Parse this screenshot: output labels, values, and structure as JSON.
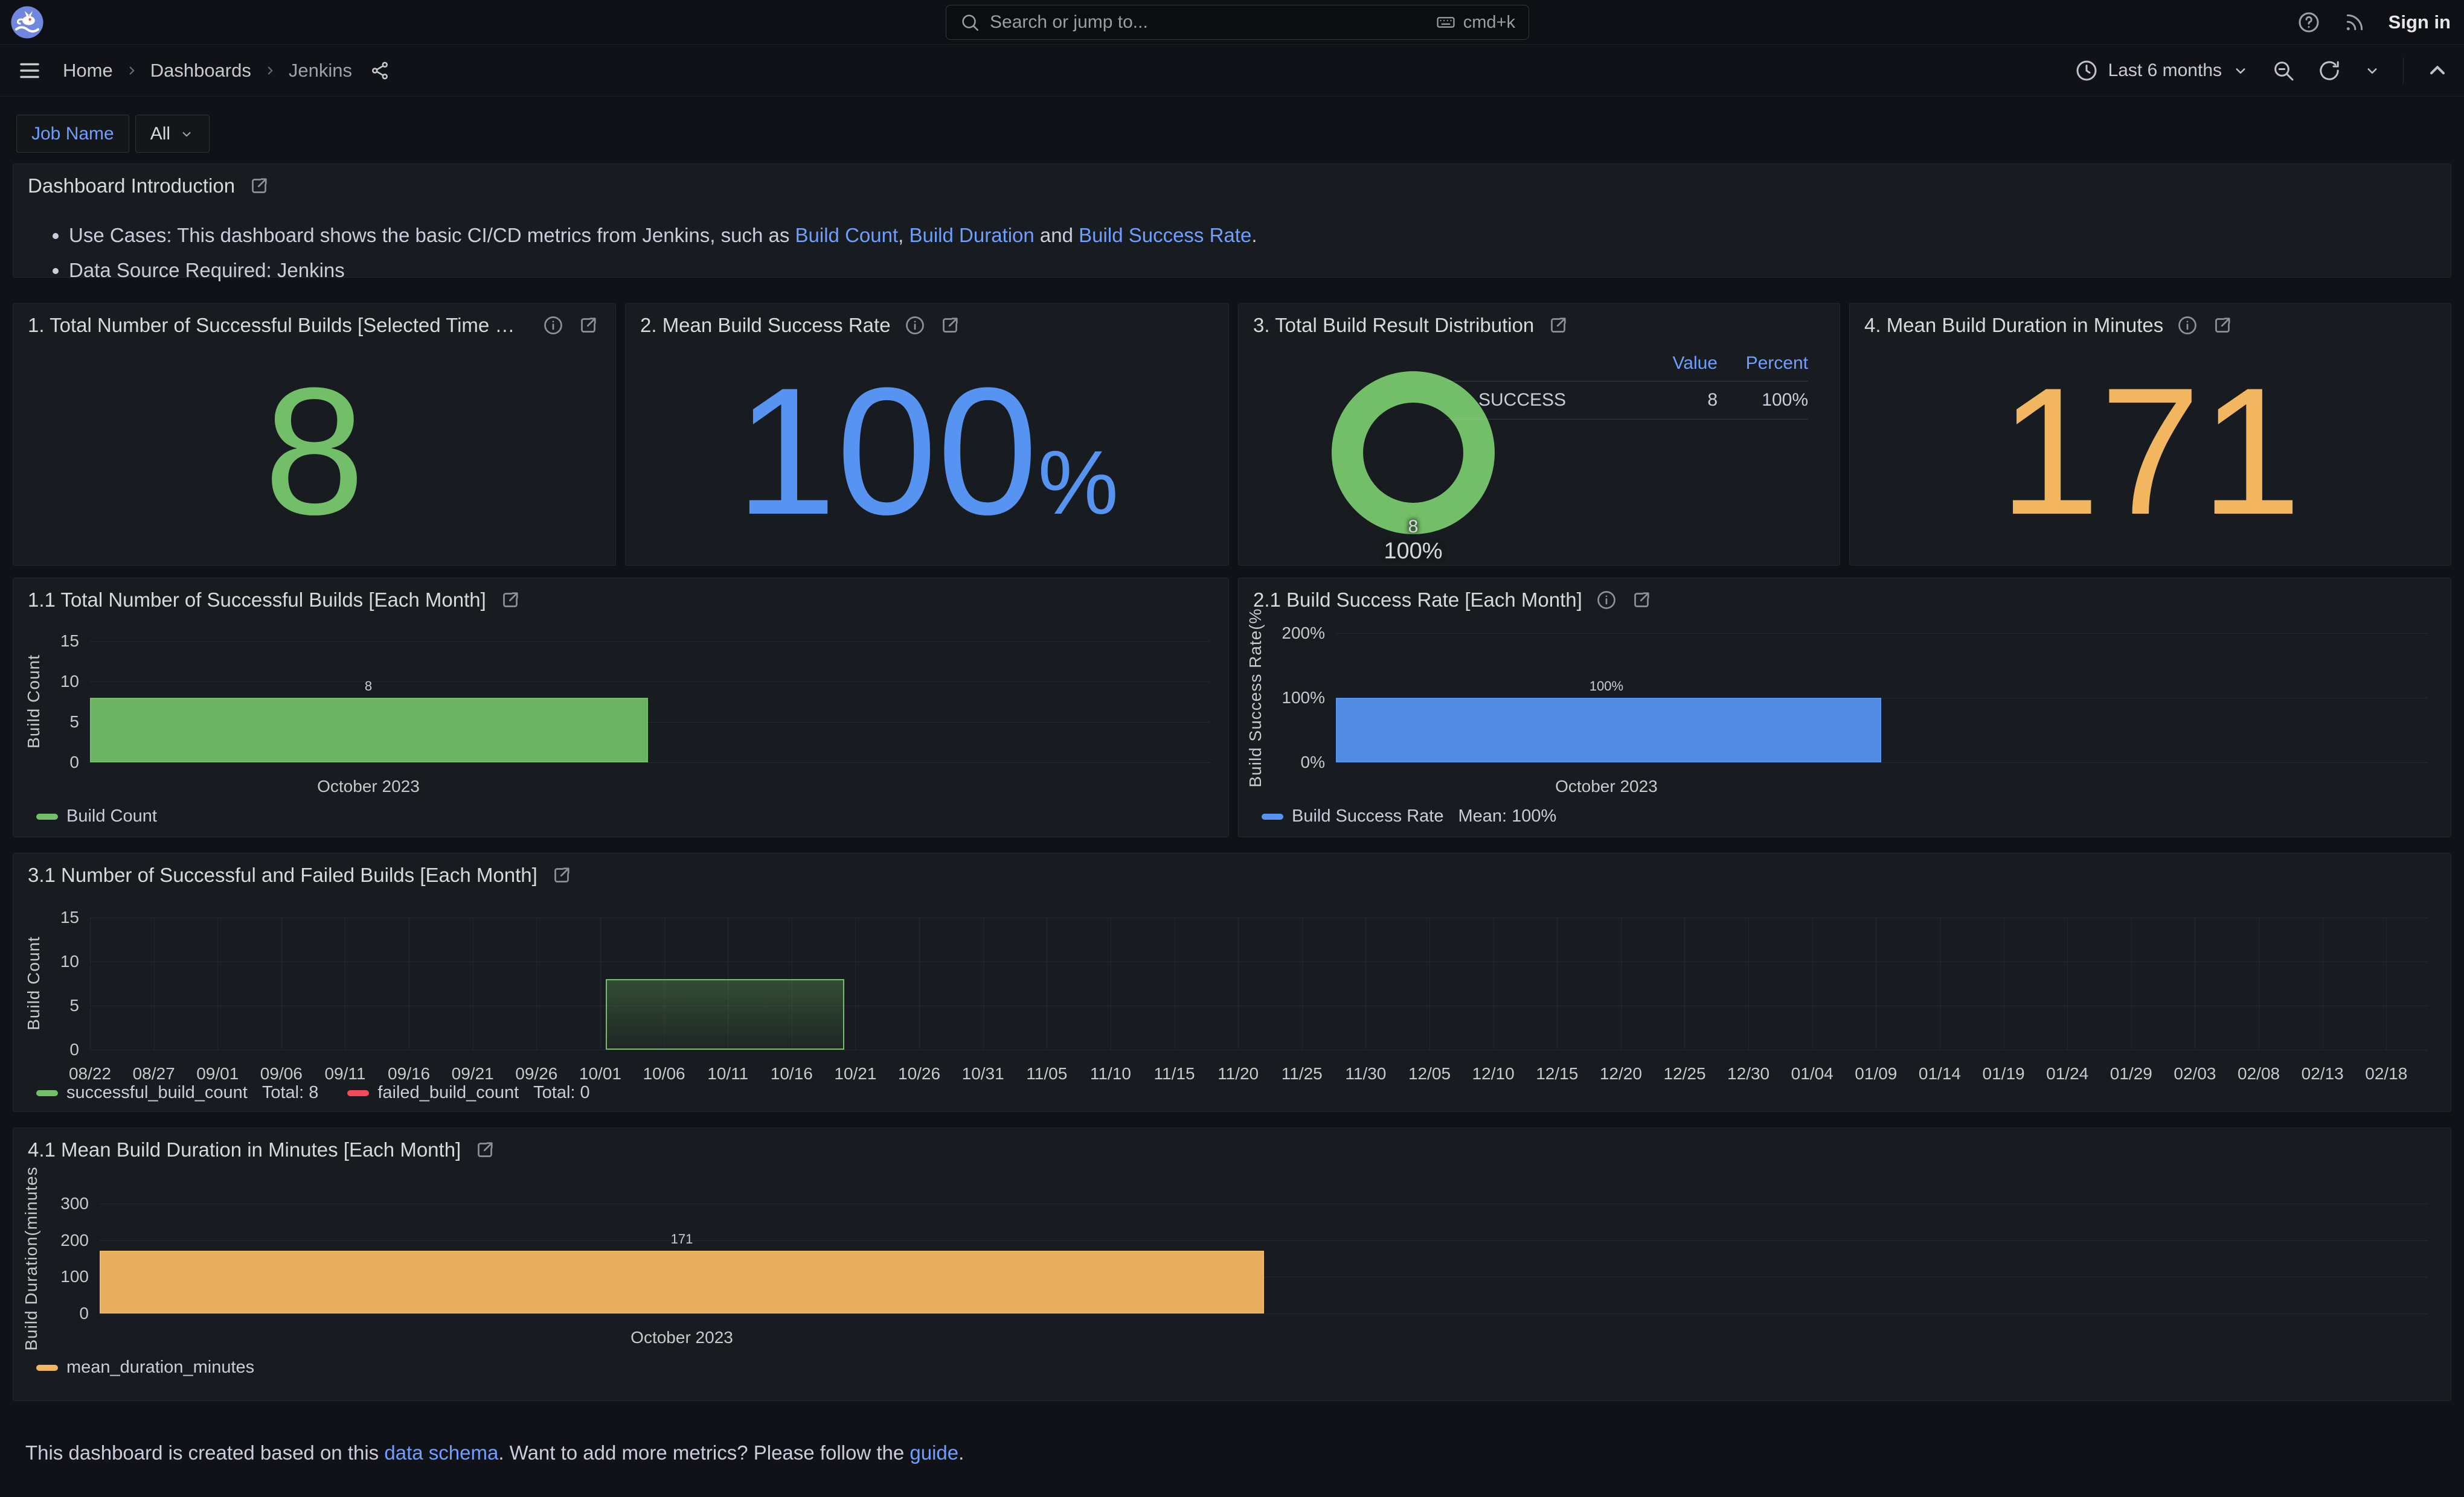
{
  "topnav": {
    "search_placeholder": "Search or jump to...",
    "shortcut": "cmd+k",
    "sign_in": "Sign in"
  },
  "toolbar": {
    "breadcrumb": [
      "Home",
      "Dashboards",
      "Jenkins"
    ],
    "time_range": "Last 6 months"
  },
  "filters": {
    "label": "Job Name",
    "value": "All"
  },
  "intro": {
    "title": "Dashboard Introduction",
    "bullet1": {
      "pre": "Use Cases: This dashboard shows the basic CI/CD metrics from Jenkins, such as ",
      "link1": "Build Count",
      "mid1": ", ",
      "link2": "Build Duration",
      "mid2": " and ",
      "link3": "Build Success Rate",
      "end": "."
    },
    "bullet2": "Data Source Required: Jenkins"
  },
  "colors": {
    "green": "#73BF69",
    "blue": "#5794F2",
    "orange": "#F2B661",
    "red": "#F2495C",
    "link": "#6E9FFF"
  },
  "icons": {
    "logo": "rabbit-circle",
    "search": "magnifier",
    "shortcut": "keyboard",
    "help": "question-circle",
    "news": "rss",
    "menu": "hamburger",
    "share": "share-alt",
    "time": "clock",
    "zoom_out": "magnifier-minus",
    "refresh": "circular-arrow",
    "chevron_down": "chevron-down",
    "collapse": "chevron-up",
    "info": "info-circle",
    "external": "external-link"
  },
  "stats": {
    "p1": {
      "title": "1. Total Number of Successful Builds [Selected Time Ra...",
      "value": "8"
    },
    "p2": {
      "title": "2. Mean Build Success Rate",
      "value": "100",
      "unit": "%"
    },
    "p3": {
      "title": "3. Total Build Result Distribution",
      "center_value": "8",
      "center_percent": "100%",
      "legend": {
        "col_value": "Value",
        "col_percent": "Percent",
        "row": {
          "name": "SUCCESS",
          "value": "8",
          "percent": "100%"
        }
      }
    },
    "p4": {
      "title": "4. Mean Build Duration in Minutes",
      "value": "171"
    }
  },
  "charts": {
    "c11": {
      "type": "bar",
      "title": "1.1 Total Number of Successful Builds [Each Month]",
      "ylabel": "Build Count",
      "ylim": [
        0,
        15
      ],
      "yticks": [
        {
          "v": 0,
          "label": "0"
        },
        {
          "v": 5,
          "label": "5"
        },
        {
          "v": 10,
          "label": "10"
        },
        {
          "v": 15,
          "label": "15"
        }
      ],
      "xticks": {
        "labels": [
          "October 2023"
        ],
        "f0": 0.2485,
        "f1": 0.2485,
        "vgrid": false
      },
      "bars": [
        {
          "f0": 0,
          "f1": 0.498,
          "value": 8,
          "label": "8",
          "label_f": 0.2485,
          "fill": "rgba(115,191,105,0.92)",
          "border": "#73BF69"
        }
      ],
      "legend": [
        {
          "color": "#73BF69",
          "label": "Build Count",
          "suffix": ""
        }
      ]
    },
    "c21": {
      "type": "bar",
      "title": "2.1 Build Success Rate [Each Month]",
      "ylabel": "Build Success Rate(%",
      "ylim": [
        0,
        200
      ],
      "yticks": [
        {
          "v": 0,
          "label": "0%"
        },
        {
          "v": 100,
          "label": "100%"
        },
        {
          "v": 200,
          "label": "200%"
        }
      ],
      "xticks": {
        "labels": [
          "October 2023"
        ],
        "f0": 0.2476,
        "f1": 0.2476,
        "vgrid": false
      },
      "bars": [
        {
          "f0": 0,
          "f1": 0.499,
          "value": 100,
          "label": "100%",
          "label_f": 0.2476,
          "fill": "rgba(87,148,242,0.92)",
          "border": "#5794F2"
        }
      ],
      "legend": [
        {
          "color": "#5794F2",
          "label": "Build Success Rate",
          "suffix": "Mean: 100%"
        }
      ]
    },
    "c31": {
      "type": "bar",
      "title": "3.1 Number of Successful and Failed Builds [Each Month]",
      "ylabel": "Build Count",
      "ylim": [
        0,
        15
      ],
      "yticks": [
        {
          "v": 0,
          "label": "0"
        },
        {
          "v": 5,
          "label": "5"
        },
        {
          "v": 10,
          "label": "10"
        },
        {
          "v": 15,
          "label": "15"
        }
      ],
      "xticks": {
        "labels": [
          "08/22",
          "08/27",
          "09/01",
          "09/06",
          "09/11",
          "09/16",
          "09/21",
          "09/26",
          "10/01",
          "10/06",
          "10/11",
          "10/16",
          "10/21",
          "10/26",
          "10/31",
          "11/05",
          "11/10",
          "11/15",
          "11/20",
          "11/25",
          "11/30",
          "12/05",
          "12/10",
          "12/15",
          "12/20",
          "12/25",
          "12/30",
          "01/04",
          "01/09",
          "01/14",
          "01/19",
          "01/24",
          "01/29",
          "02/03",
          "02/08",
          "02/13",
          "02/18"
        ],
        "f0": 0,
        "f1": 0.982,
        "vgrid": true
      },
      "bars": [
        {
          "f0": 0.2206,
          "f1": 0.3226,
          "value": 8,
          "gradient": true,
          "border": "#73BF69"
        }
      ],
      "legend": [
        {
          "color": "#73BF69",
          "label": "successful_build_count",
          "suffix": "Total: 8"
        },
        {
          "color": "#F2495C",
          "label": "failed_build_count",
          "suffix": "Total: 0"
        }
      ]
    },
    "c41": {
      "type": "bar",
      "title": "4.1 Mean Build Duration in Minutes [Each Month]",
      "ylabel": "Build Duration(minutes",
      "ylim": [
        0,
        300
      ],
      "yticks": [
        {
          "v": 0,
          "label": "0"
        },
        {
          "v": 100,
          "label": "100"
        },
        {
          "v": 200,
          "label": "200"
        },
        {
          "v": 300,
          "label": "300"
        }
      ],
      "xticks": {
        "labels": [
          "October 2023"
        ],
        "f0": 0.25,
        "f1": 0.25,
        "vgrid": false
      },
      "bars": [
        {
          "f0": 0,
          "f1": 0.5,
          "value": 171,
          "label": "171",
          "label_f": 0.25,
          "fill": "rgba(242,182,97,0.95)",
          "border": "#F2B661"
        }
      ],
      "legend": [
        {
          "color": "#F2B661",
          "label": "mean_duration_minutes",
          "suffix": ""
        }
      ]
    }
  },
  "footer": {
    "pre": "This dashboard is created based on this ",
    "link1": "data schema",
    "mid": ". Want to add more metrics? Please follow the ",
    "link2": "guide",
    "end": "."
  }
}
